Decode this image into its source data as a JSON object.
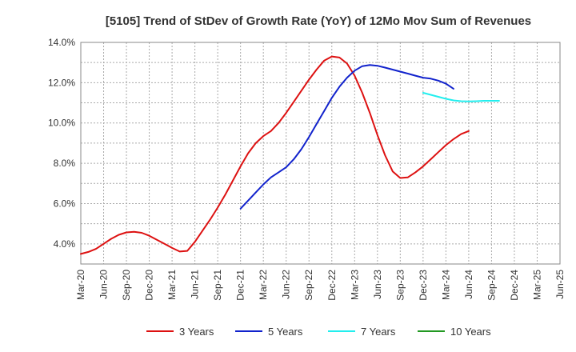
{
  "chart_data": {
    "type": "line",
    "title": "[5105]  Trend of StDev of Growth Rate (YoY) of 12Mo Mov Sum of Revenues",
    "xlabel": "",
    "ylabel": "",
    "ylim": [
      3.0,
      14.0
    ],
    "y_ticks": [
      "4.0%",
      "6.0%",
      "8.0%",
      "10.0%",
      "12.0%",
      "14.0%"
    ],
    "y_tick_values": [
      4,
      6,
      8,
      10,
      12,
      14
    ],
    "x_ticks": [
      "Mar-20",
      "Jun-20",
      "Sep-20",
      "Dec-20",
      "Mar-21",
      "Jun-21",
      "Sep-21",
      "Dec-21",
      "Mar-22",
      "Jun-22",
      "Sep-22",
      "Dec-22",
      "Mar-23",
      "Jun-23",
      "Sep-23",
      "Dec-23",
      "Mar-24",
      "Jun-24",
      "Sep-24",
      "Dec-24",
      "Mar-25",
      "Jun-25"
    ],
    "grid": true,
    "legend_position": "bottom",
    "series": [
      {
        "name": "3 Years",
        "color": "#dd1111",
        "start_index": 0,
        "values": [
          3.5,
          3.6,
          3.75,
          4.0,
          4.25,
          4.45,
          4.57,
          4.6,
          4.55,
          4.4,
          4.2,
          4.0,
          3.8,
          3.62,
          3.65,
          4.1,
          4.65,
          5.2,
          5.8,
          6.45,
          7.15,
          7.85,
          8.5,
          9.0,
          9.35,
          9.6,
          10.0,
          10.5,
          11.05,
          11.6,
          12.15,
          12.65,
          13.1,
          13.3,
          13.25,
          12.95,
          12.35,
          11.5,
          10.5,
          9.4,
          8.4,
          7.6,
          7.27,
          7.3,
          7.55,
          7.85,
          8.2,
          8.55,
          8.9,
          9.2,
          9.45,
          9.6
        ]
      },
      {
        "name": "5 Years",
        "color": "#1122cc",
        "start_index": 21,
        "values": [
          5.75,
          6.15,
          6.55,
          6.95,
          7.3,
          7.55,
          7.8,
          8.2,
          8.7,
          9.3,
          9.95,
          10.6,
          11.25,
          11.8,
          12.25,
          12.6,
          12.82,
          12.88,
          12.84,
          12.75,
          12.65,
          12.55,
          12.45,
          12.35,
          12.25,
          12.2,
          12.1,
          11.95,
          11.7
        ]
      },
      {
        "name": "7 Years",
        "color": "#22eeee",
        "start_index": 45,
        "values": [
          11.5,
          11.4,
          11.3,
          11.2,
          11.12,
          11.08,
          11.07,
          11.08,
          11.1,
          11.1,
          11.1
        ]
      },
      {
        "name": "10 Years",
        "color": "#229922",
        "start_index": 0,
        "values": []
      }
    ]
  }
}
